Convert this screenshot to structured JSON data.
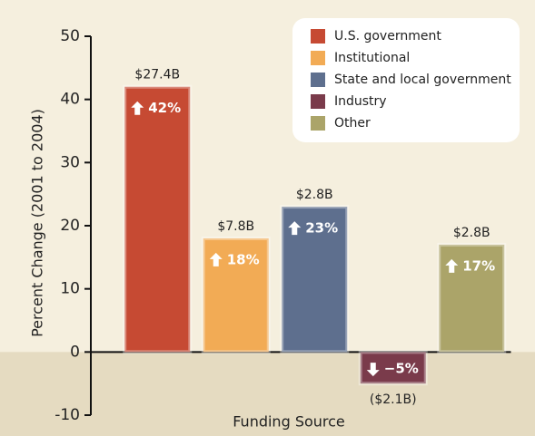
{
  "chart_data": {
    "type": "bar",
    "categories": [
      "U.S. government",
      "Institutional",
      "State and local government",
      "Industry",
      "Other"
    ],
    "values": [
      42,
      18,
      23,
      -5,
      17
    ],
    "value_labels": [
      "42%",
      "18%",
      "23%",
      "−5%",
      "17%"
    ],
    "amounts": [
      "$27.4B",
      "$7.8B",
      "$2.8B",
      "($2.1B)",
      "$2.8B"
    ],
    "colors": [
      "#c64a33",
      "#f2ab55",
      "#5e6f8e",
      "#7a3b4b",
      "#aba469"
    ],
    "y_label": "Percent Change (2001 to 2004)",
    "x_label": "Funding Source",
    "ylim": [
      -10,
      50
    ],
    "yticks": [
      -10,
      0,
      10,
      20,
      30,
      40,
      50
    ],
    "legend": "top-right"
  }
}
